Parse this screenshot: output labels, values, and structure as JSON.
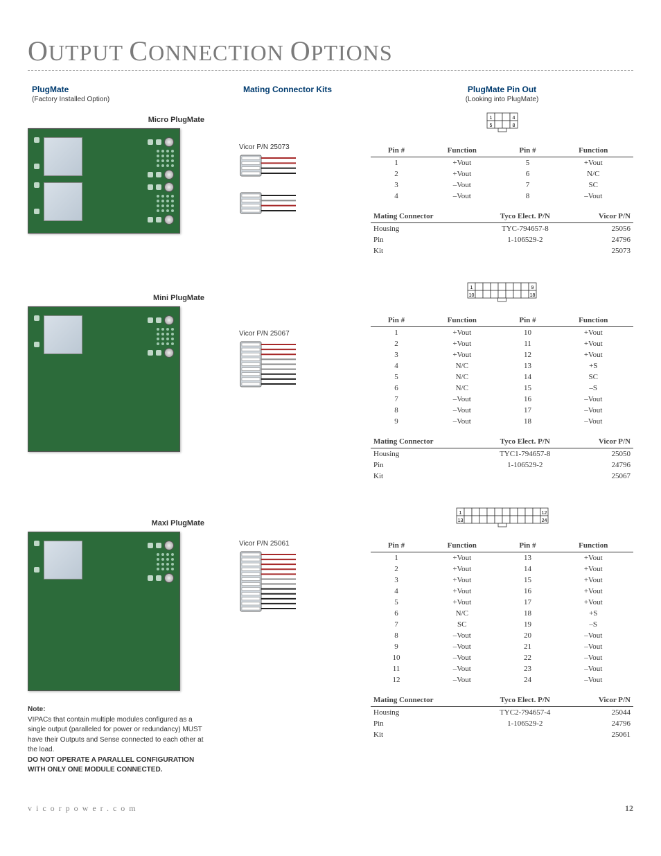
{
  "page": {
    "title_parts": [
      "O",
      "UTPUT ",
      "C",
      "ONNECTION ",
      "O",
      "PTIONS"
    ],
    "footer_url": "vicorpower.com",
    "page_number": "12"
  },
  "headers": {
    "plugmate": "PlugMate",
    "plugmate_sub": "(Factory Installed Option)",
    "mating_kits": "Mating Connector Kits",
    "pinout": "PlugMate Pin Out",
    "pinout_sub": "(Looking into PlugMate)"
  },
  "micro": {
    "label": "Micro PlugMate",
    "conn_label": "Vicor P/N 25073",
    "pin_diagram": {
      "cols": 4,
      "rows": 2,
      "tl": "1",
      "tr": "4",
      "bl": "5",
      "br": "8"
    },
    "pin_headers": [
      "Pin #",
      "Function",
      "Pin #",
      "Function"
    ],
    "pins": [
      [
        "1",
        "+Vout",
        "5",
        "+Vout"
      ],
      [
        "2",
        "+Vout",
        "6",
        "N/C"
      ],
      [
        "3",
        "–Vout",
        "7",
        "SC"
      ],
      [
        "4",
        "–Vout",
        "8",
        "–Vout"
      ]
    ],
    "mating_headers": [
      "Mating Connector",
      "Tyco Elect. P/N",
      "Vicor P/N"
    ],
    "mating": [
      [
        "Housing",
        "TYC-794657-8",
        "25056"
      ],
      [
        "Pin",
        "1-106529-2",
        "24796"
      ],
      [
        "Kit",
        "",
        "25073"
      ]
    ],
    "connector_wires": 4
  },
  "mini": {
    "label": "Mini PlugMate",
    "conn_label": "Vicor P/N 25067",
    "pin_diagram": {
      "cols": 9,
      "rows": 2,
      "tl": "1",
      "tr": "9",
      "bl": "10",
      "br": "18"
    },
    "pin_headers": [
      "Pin #",
      "Function",
      "Pin #",
      "Function"
    ],
    "pins": [
      [
        "1",
        "+Vout",
        "10",
        "+Vout"
      ],
      [
        "2",
        "+Vout",
        "11",
        "+Vout"
      ],
      [
        "3",
        "+Vout",
        "12",
        "+Vout"
      ],
      [
        "4",
        "N/C",
        "13",
        "+S"
      ],
      [
        "5",
        "N/C",
        "14",
        "SC"
      ],
      [
        "6",
        "N/C",
        "15",
        "–S"
      ],
      [
        "7",
        "–Vout",
        "16",
        "–Vout"
      ],
      [
        "8",
        "–Vout",
        "17",
        "–Vout"
      ],
      [
        "9",
        "–Vout",
        "18",
        "–Vout"
      ]
    ],
    "mating_headers": [
      "Mating Connector",
      "Tyco Elect. P/N",
      "Vicor P/N"
    ],
    "mating": [
      [
        "Housing",
        "TYC1-794657-8",
        "25050"
      ],
      [
        "Pin",
        "1-106529-2",
        "24796"
      ],
      [
        "Kit",
        "",
        "25067"
      ]
    ],
    "connector_wires": 9
  },
  "maxi": {
    "label": "Maxi PlugMate",
    "conn_label": "Vicor P/N 25061",
    "pin_diagram": {
      "cols": 12,
      "rows": 2,
      "tl": "1",
      "tr": "12",
      "bl": "13",
      "br": "24"
    },
    "pin_headers": [
      "Pin #",
      "Function",
      "Pin #",
      "Function"
    ],
    "pins": [
      [
        "1",
        "+Vout",
        "13",
        "+Vout"
      ],
      [
        "2",
        "+Vout",
        "14",
        "+Vout"
      ],
      [
        "3",
        "+Vout",
        "15",
        "+Vout"
      ],
      [
        "4",
        "+Vout",
        "16",
        "+Vout"
      ],
      [
        "5",
        "+Vout",
        "17",
        "+Vout"
      ],
      [
        "6",
        "N/C",
        "18",
        "+S"
      ],
      [
        "7",
        "SC",
        "19",
        "–S"
      ],
      [
        "8",
        "–Vout",
        "20",
        "–Vout"
      ],
      [
        "9",
        "–Vout",
        "21",
        "–Vout"
      ],
      [
        "10",
        "–Vout",
        "22",
        "–Vout"
      ],
      [
        "11",
        "–Vout",
        "23",
        "–Vout"
      ],
      [
        "12",
        "–Vout",
        "24",
        "–Vout"
      ]
    ],
    "mating_headers": [
      "Mating Connector",
      "Tyco Elect. P/N",
      "Vicor P/N"
    ],
    "mating": [
      [
        "Housing",
        "TYC2-794657-4",
        "25044"
      ],
      [
        "Pin",
        "1-106529-2",
        "24796"
      ],
      [
        "Kit",
        "",
        "25061"
      ]
    ],
    "connector_wires": 12
  },
  "note": {
    "title": "Note:",
    "body": "VIPACs that contain multiple modules configured as a single output (paralleled for power or redundancy) MUST have their Outputs and Sense connected to each other at the load.",
    "warn": "DO NOT OPERATE A PARALLEL CONFIGURATION WITH ONLY ONE MODULE CONNECTED."
  },
  "colors": {
    "heading": "#003b6f",
    "pcb_green": "#2c6b3a",
    "wire_red": "#a62828",
    "wire_black": "#222222",
    "wire_grey": "#888888",
    "connector_body": "#cfd6dc"
  }
}
